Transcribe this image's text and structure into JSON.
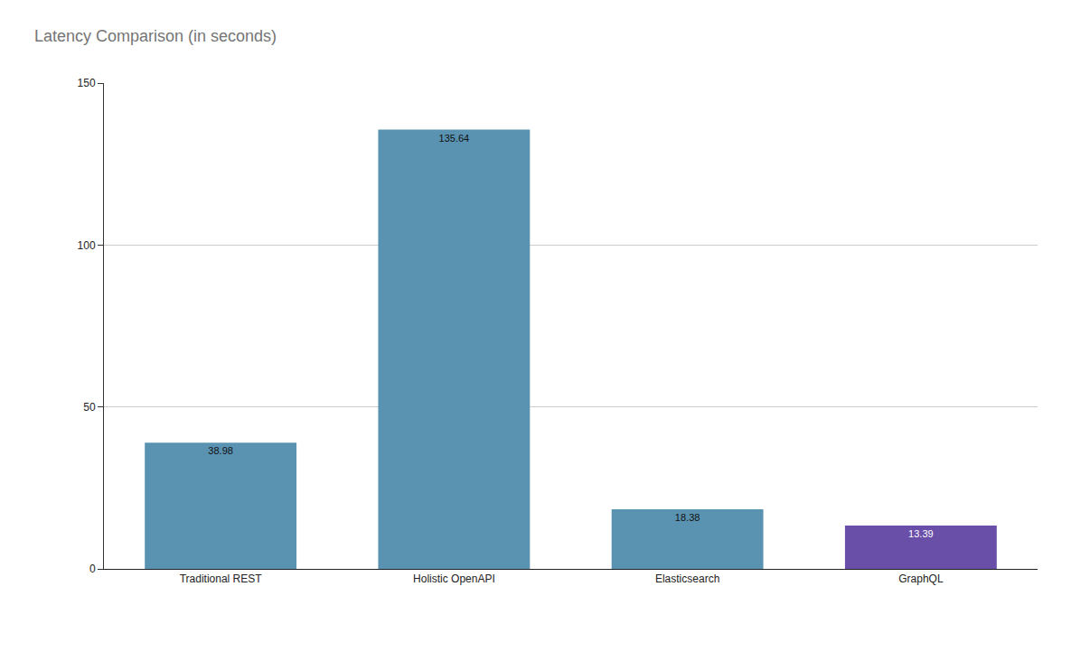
{
  "chart_data": {
    "type": "bar",
    "title": "Latency Comparison (in seconds)",
    "categories": [
      "Traditional REST",
      "Holistic OpenAPI",
      "Elasticsearch",
      "GraphQL"
    ],
    "values": [
      38.98,
      135.64,
      18.38,
      13.39
    ],
    "colors": [
      "#5a93b1",
      "#5a93b1",
      "#5a93b1",
      "#6a4fa9"
    ],
    "ylim": [
      0,
      150
    ],
    "yticks": [
      0,
      50,
      100,
      150
    ],
    "grid": true,
    "data_labels": true
  }
}
